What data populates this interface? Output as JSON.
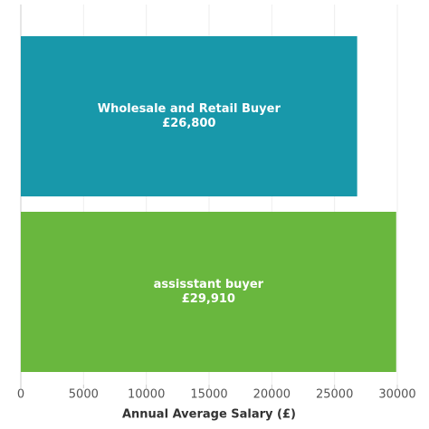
{
  "chart_data": {
    "type": "hbar",
    "categories": [
      "Wholesale and Retail Buyer",
      "assisstant buyer"
    ],
    "values": [
      26800,
      29910
    ],
    "value_labels": [
      "£26,800",
      "£29,910"
    ],
    "colors": [
      "#1898aa",
      "#69b73e"
    ],
    "xlim": [
      0,
      30000
    ],
    "xticks": [
      0,
      5000,
      10000,
      15000,
      20000,
      25000,
      30000
    ],
    "xlabel": "Annual Average Salary (£)",
    "grid": true
  }
}
